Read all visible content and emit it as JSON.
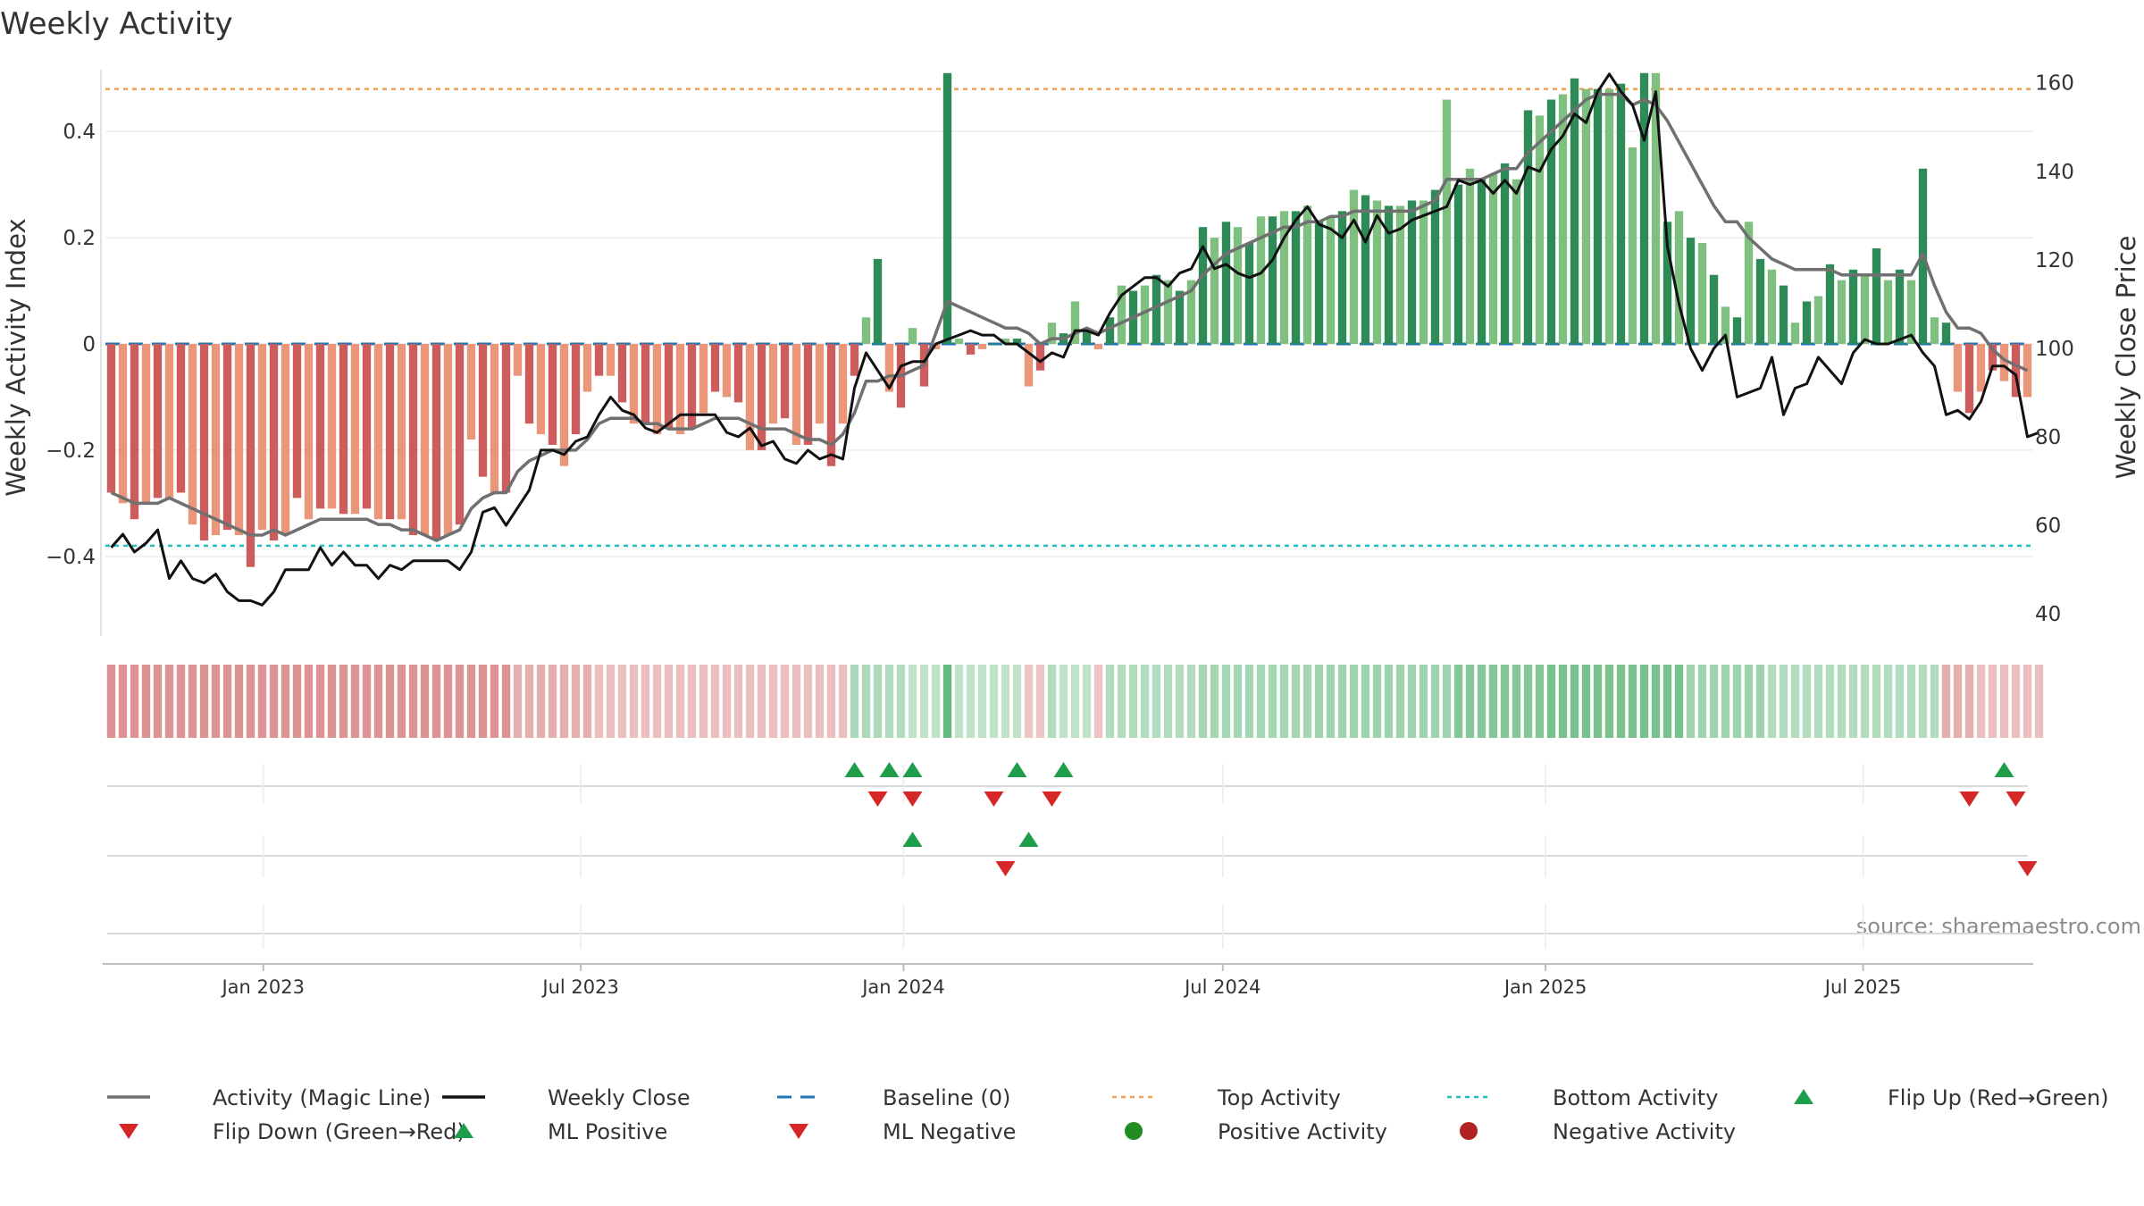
{
  "chart_data": {
    "type": "bar",
    "title": "Weekly Activity",
    "source": "source: sharemaestro.com",
    "ylabel_left": "Weekly Activity Index",
    "ylabel_right": "Weekly Close Price",
    "ylim_left": [
      -0.55,
      0.55
    ],
    "ylim_right": [
      35,
      167
    ],
    "left_ticks": [
      {
        "v": 0.4,
        "label": "0.4"
      },
      {
        "v": 0.2,
        "label": "0.2"
      },
      {
        "v": 0,
        "label": "0"
      },
      {
        "v": -0.2,
        "label": "−0.2"
      },
      {
        "v": -0.4,
        "label": "−0.4"
      }
    ],
    "right_ticks": [
      160,
      140,
      120,
      100,
      80,
      60,
      40
    ],
    "x_start": "2022-10-03",
    "x_end": "2025-10-06",
    "x_ticks": [
      {
        "date": "2023-01-01",
        "label": "Jan 2023"
      },
      {
        "date": "2023-07-01",
        "label": "Jul 2023"
      },
      {
        "date": "2024-01-01",
        "label": "Jan 2024"
      },
      {
        "date": "2024-07-01",
        "label": "Jul 2024"
      },
      {
        "date": "2025-01-01",
        "label": "Jan 2025"
      },
      {
        "date": "2025-07-01",
        "label": "Jul 2025"
      }
    ],
    "top_activity": 0.48,
    "bottom_activity": -0.38,
    "baseline": 0,
    "activity": [
      -0.28,
      -0.3,
      -0.33,
      -0.3,
      -0.29,
      -0.29,
      -0.28,
      -0.34,
      -0.37,
      -0.36,
      -0.35,
      -0.36,
      -0.42,
      -0.35,
      -0.37,
      -0.36,
      -0.29,
      -0.33,
      -0.31,
      -0.31,
      -0.32,
      -0.32,
      -0.31,
      -0.33,
      -0.33,
      -0.33,
      -0.36,
      -0.36,
      -0.37,
      -0.36,
      -0.34,
      -0.18,
      -0.25,
      -0.28,
      -0.28,
      -0.06,
      -0.15,
      -0.17,
      -0.19,
      -0.23,
      -0.17,
      -0.09,
      -0.06,
      -0.06,
      -0.11,
      -0.15,
      -0.15,
      -0.17,
      -0.16,
      -0.17,
      -0.16,
      -0.13,
      -0.09,
      -0.1,
      -0.11,
      -0.2,
      -0.2,
      -0.15,
      -0.14,
      -0.19,
      -0.19,
      -0.15,
      -0.23,
      -0.15,
      -0.06,
      0.05,
      0.16,
      -0.09,
      -0.12,
      0.03,
      -0.08,
      -0.01,
      0.51,
      0.01,
      -0.02,
      -0.01,
      0,
      0.01,
      0.01,
      -0.08,
      -0.05,
      0.04,
      0.02,
      0.08,
      0.03,
      -0.01,
      0.05,
      0.11,
      0.1,
      0.11,
      0.13,
      0.12,
      0.1,
      0.12,
      0.22,
      0.2,
      0.23,
      0.22,
      0.19,
      0.24,
      0.24,
      0.25,
      0.25,
      0.26,
      0.23,
      0.24,
      0.25,
      0.29,
      0.28,
      0.27,
      0.26,
      0.26,
      0.27,
      0.27,
      0.29,
      0.46,
      0.3,
      0.33,
      0.31,
      0.32,
      0.34,
      0.31,
      0.44,
      0.43,
      0.46,
      0.47,
      0.5,
      0.48,
      0.48,
      0.48,
      0.49,
      0.37,
      0.51,
      0.51,
      0.23,
      0.25,
      0.2,
      0.19,
      0.13,
      0.07,
      0.05,
      0.23,
      0.16,
      0.14,
      0.11,
      0.04,
      0.08,
      0.09,
      0.15,
      0.12,
      0.14,
      0.13,
      0.18,
      0.12,
      0.14,
      0.12,
      0.33,
      0.05,
      0.04,
      -0.09,
      -0.13,
      -0.09,
      -0.05,
      -0.07,
      -0.1,
      -0.1
    ],
    "magic_line": [
      -0.28,
      -0.29,
      -0.3,
      -0.3,
      -0.3,
      -0.29,
      -0.3,
      -0.31,
      -0.32,
      -0.33,
      -0.34,
      -0.35,
      -0.36,
      -0.36,
      -0.35,
      -0.36,
      -0.35,
      -0.34,
      -0.33,
      -0.33,
      -0.33,
      -0.33,
      -0.33,
      -0.34,
      -0.34,
      -0.35,
      -0.35,
      -0.36,
      -0.37,
      -0.36,
      -0.35,
      -0.31,
      -0.29,
      -0.28,
      -0.28,
      -0.24,
      -0.22,
      -0.21,
      -0.2,
      -0.2,
      -0.2,
      -0.18,
      -0.15,
      -0.14,
      -0.14,
      -0.14,
      -0.15,
      -0.15,
      -0.16,
      -0.16,
      -0.16,
      -0.15,
      -0.14,
      -0.14,
      -0.14,
      -0.15,
      -0.16,
      -0.16,
      -0.16,
      -0.17,
      -0.18,
      -0.18,
      -0.19,
      -0.17,
      -0.13,
      -0.07,
      -0.07,
      -0.06,
      -0.06,
      -0.05,
      -0.04,
      0.02,
      0.08,
      0.07,
      0.06,
      0.05,
      0.04,
      0.03,
      0.03,
      0.02,
      0,
      0.01,
      0.01,
      0.02,
      0.03,
      0.02,
      0.03,
      0.04,
      0.05,
      0.06,
      0.07,
      0.08,
      0.09,
      0.1,
      0.13,
      0.15,
      0.17,
      0.18,
      0.19,
      0.2,
      0.21,
      0.22,
      0.22,
      0.23,
      0.23,
      0.24,
      0.24,
      0.25,
      0.25,
      0.25,
      0.25,
      0.25,
      0.25,
      0.26,
      0.27,
      0.31,
      0.31,
      0.31,
      0.31,
      0.32,
      0.33,
      0.33,
      0.36,
      0.38,
      0.4,
      0.42,
      0.44,
      0.46,
      0.47,
      0.47,
      0.47,
      0.45,
      0.46,
      0.45,
      0.42,
      0.38,
      0.34,
      0.3,
      0.26,
      0.23,
      0.23,
      0.2,
      0.18,
      0.16,
      0.15,
      0.14,
      0.14,
      0.14,
      0.14,
      0.13,
      0.13,
      0.13,
      0.13,
      0.13,
      0.13,
      0.13,
      0.17,
      0.11,
      0.06,
      0.03,
      0.03,
      0.02,
      -0.01,
      -0.03,
      -0.04,
      -0.05
    ],
    "weekly_close": [
      55,
      58,
      54,
      56,
      59,
      48,
      52,
      48,
      47,
      49,
      45,
      43,
      43,
      42,
      45,
      50,
      50,
      50,
      55,
      51,
      54,
      51,
      51,
      48,
      51,
      50,
      52,
      52,
      52,
      52,
      50,
      54,
      63,
      64,
      60,
      64,
      68,
      77,
      77,
      76,
      79,
      80,
      85,
      89,
      86,
      85,
      82,
      81,
      83,
      85,
      85,
      85,
      85,
      81,
      80,
      82,
      78,
      79,
      75,
      74,
      77,
      75,
      76,
      75,
      91,
      99,
      95,
      91,
      96,
      97,
      97,
      101,
      102,
      103,
      104,
      103,
      103,
      101,
      101,
      99,
      97,
      99,
      98,
      104,
      104,
      103,
      108,
      112,
      114,
      116,
      116,
      114,
      117,
      118,
      123,
      118,
      119,
      117,
      116,
      117,
      120,
      125,
      129,
      132,
      128,
      127,
      125,
      129,
      124,
      130,
      126,
      127,
      129,
      130,
      131,
      132,
      138,
      137,
      138,
      135,
      138,
      135,
      141,
      140,
      145,
      148,
      153,
      151,
      158,
      162,
      158,
      155,
      147,
      158,
      123,
      110,
      100,
      95,
      100,
      103,
      89,
      90,
      91,
      98,
      85,
      91,
      92,
      98,
      95,
      92,
      99,
      102,
      101,
      101,
      102,
      103,
      99,
      96,
      85,
      86,
      84,
      88,
      96,
      96,
      94,
      80,
      81
    ],
    "band_scores": [
      -0.7,
      -0.7,
      -0.7,
      -0.7,
      -0.7,
      -0.7,
      -0.7,
      -0.7,
      -0.7,
      -0.7,
      -0.7,
      -0.7,
      -0.7,
      -0.7,
      -0.7,
      -0.7,
      -0.7,
      -0.7,
      -0.7,
      -0.7,
      -0.7,
      -0.7,
      -0.7,
      -0.7,
      -0.7,
      -0.7,
      -0.7,
      -0.7,
      -0.7,
      -0.7,
      -0.7,
      -0.7,
      -0.7,
      -0.7,
      -0.7,
      -0.45,
      -0.45,
      -0.45,
      -0.45,
      -0.45,
      -0.45,
      -0.45,
      -0.3,
      -0.3,
      -0.3,
      -0.3,
      -0.3,
      -0.3,
      -0.3,
      -0.3,
      -0.3,
      -0.3,
      -0.3,
      -0.3,
      -0.3,
      -0.3,
      -0.3,
      -0.3,
      -0.3,
      -0.3,
      -0.3,
      -0.3,
      -0.3,
      -0.3,
      0.35,
      0.35,
      0.35,
      0.3,
      0.3,
      0.2,
      0.2,
      0.2,
      0.9,
      0.2,
      0.2,
      0.2,
      0.2,
      0.2,
      0.2,
      -0.25,
      -0.25,
      0.3,
      0.2,
      0.2,
      0.2,
      -0.25,
      0.3,
      0.3,
      0.3,
      0.3,
      0.3,
      0.3,
      0.3,
      0.3,
      0.4,
      0.4,
      0.4,
      0.4,
      0.4,
      0.4,
      0.4,
      0.4,
      0.4,
      0.4,
      0.45,
      0.45,
      0.45,
      0.45,
      0.45,
      0.45,
      0.45,
      0.45,
      0.45,
      0.45,
      0.45,
      0.45,
      0.65,
      0.65,
      0.65,
      0.65,
      0.65,
      0.65,
      0.65,
      0.65,
      0.75,
      0.75,
      0.75,
      0.75,
      0.75,
      0.75,
      0.75,
      0.75,
      0.75,
      0.75,
      0.75,
      0.75,
      0.45,
      0.45,
      0.45,
      0.45,
      0.45,
      0.45,
      0.45,
      0.3,
      0.3,
      0.3,
      0.3,
      0.3,
      0.3,
      0.3,
      0.3,
      0.3,
      0.3,
      0.3,
      0.3,
      0.3,
      0.3,
      0.3,
      -0.45,
      -0.45,
      -0.45,
      -0.3,
      -0.3,
      -0.3,
      -0.3,
      -0.3,
      -0.3
    ],
    "flip_up": [
      64,
      67,
      69,
      78,
      82,
      163
    ],
    "flip_down": [
      66,
      69,
      76,
      81,
      160,
      164
    ],
    "ml_positive": [
      69,
      79
    ],
    "ml_negative": [
      77,
      165
    ],
    "colors": {
      "pos_dark": "#2e8b57",
      "pos_light": "#7fbf7f",
      "neg_dark": "#cd5c5c",
      "neg_light": "#e9967a",
      "magic_line": "#707070",
      "close": "#111111",
      "baseline": "#1f77b4",
      "top": "#f0a050",
      "bottom": "#20c0c0",
      "marker_up": "#1e9e4a",
      "marker_down": "#d62728",
      "positive_activity": "#228b22",
      "negative_activity": "#b22222"
    },
    "legend": [
      {
        "label": "Activity (Magic Line)",
        "kind": "line",
        "color": "#707070"
      },
      {
        "label": "Weekly Close",
        "kind": "line",
        "color": "#111111"
      },
      {
        "label": "Baseline (0)",
        "kind": "dash",
        "color": "#1f77b4"
      },
      {
        "label": "Top Activity",
        "kind": "dot",
        "color": "#f0a050"
      },
      {
        "label": "Bottom Activity",
        "kind": "dot",
        "color": "#20c0c0"
      },
      {
        "label": "Flip Up (Red→Green)",
        "kind": "up",
        "color": "#1e9e4a"
      },
      {
        "label": "Flip Down (Green→Red)",
        "kind": "down",
        "color": "#d62728"
      },
      {
        "label": "ML Positive",
        "kind": "up",
        "color": "#1e9e4a"
      },
      {
        "label": "ML Negative",
        "kind": "down",
        "color": "#d62728"
      },
      {
        "label": "Positive Activity",
        "kind": "circle",
        "color": "#228b22"
      },
      {
        "label": "Negative Activity",
        "kind": "circle",
        "color": "#b22222"
      }
    ]
  }
}
